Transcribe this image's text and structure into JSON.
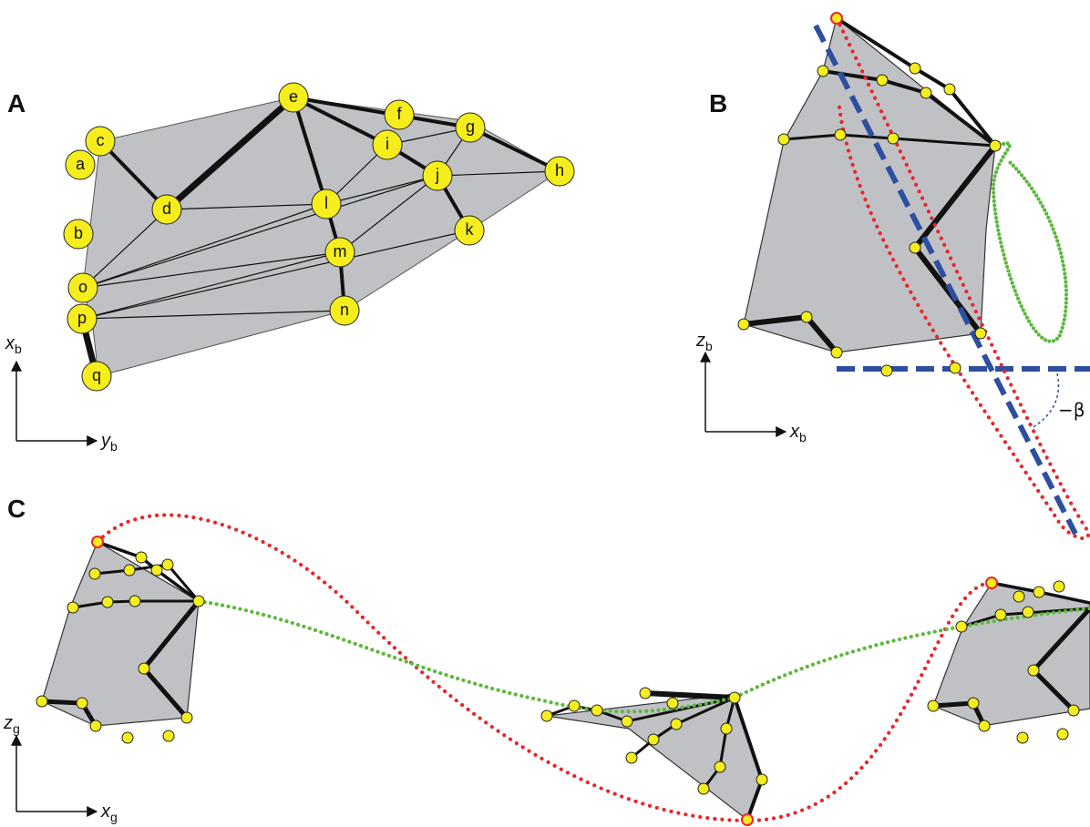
{
  "panels": {
    "A": {
      "label": "A",
      "nodes": [
        "a",
        "b",
        "c",
        "d",
        "e",
        "f",
        "g",
        "h",
        "i",
        "j",
        "k",
        "l",
        "m",
        "n",
        "o",
        "p",
        "q"
      ],
      "axis_x": {
        "main": "x",
        "sub": "b"
      },
      "axis_y": {
        "main": "y",
        "sub": "b"
      }
    },
    "B": {
      "label": "B",
      "axis_z": {
        "main": "z",
        "sub": "b"
      },
      "axis_x": {
        "main": "x",
        "sub": "b"
      },
      "angle_label": "−β"
    },
    "C": {
      "label": "C",
      "axis_z": {
        "main": "z",
        "sub": "g"
      },
      "axis_x": {
        "main": "x",
        "sub": "g"
      }
    }
  },
  "colors": {
    "polygon_fill": "#c0c1c4",
    "node_fill": "#f5ee1c",
    "edge": "#111111",
    "red_trajectory": "#e8262b",
    "green_trajectory": "#5cb83c",
    "blue_dashed": "#2e4ea0"
  }
}
